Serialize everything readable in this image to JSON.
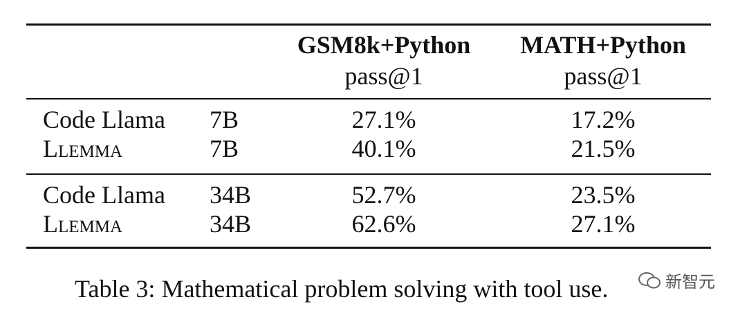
{
  "table": {
    "header": [
      [
        "",
        "",
        "GSM8k+Python",
        "MATH+Python"
      ],
      [
        "",
        "",
        "pass@1",
        "pass@1"
      ]
    ],
    "groups": [
      [
        [
          "Code Llama",
          "7B",
          "27.1%",
          "17.2%"
        ],
        [
          "Llemma",
          "7B",
          "40.1%",
          "21.5%"
        ]
      ],
      [
        [
          "Code Llama",
          "34B",
          "52.7%",
          "23.5%"
        ],
        [
          "Llemma",
          "34B",
          "62.6%",
          "27.1%"
        ]
      ]
    ]
  },
  "caption": "Table 3: Mathematical problem solving with tool use.",
  "watermark": "新智元"
}
